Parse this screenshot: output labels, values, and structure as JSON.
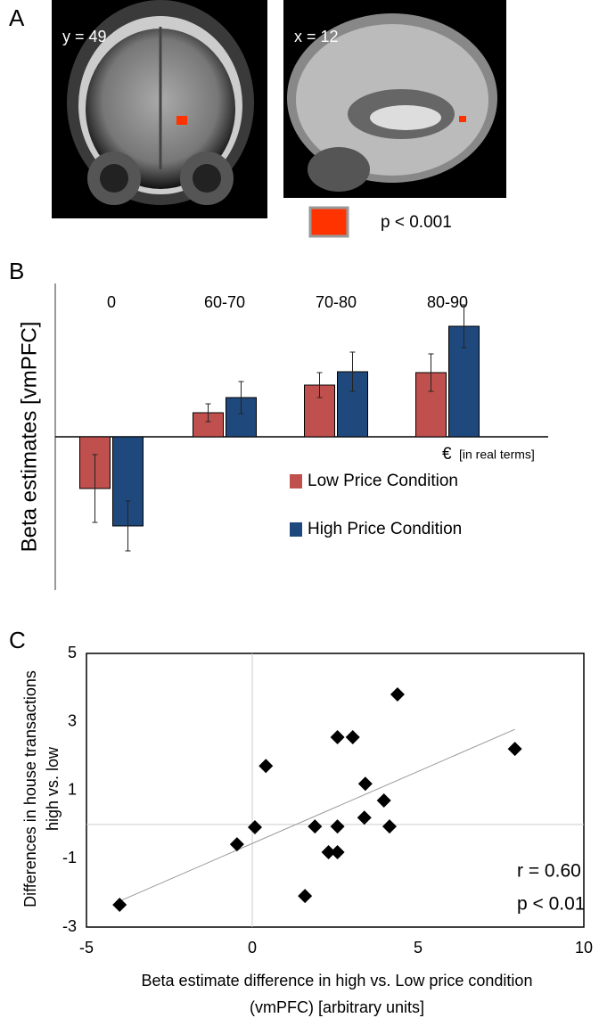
{
  "panel_a": {
    "label": "A",
    "image_1_label": "y = 49",
    "image_2_label": "x = 12",
    "legend_label": "p < 0.001",
    "legend_color": "#ff3300"
  },
  "chart_data": [
    {
      "type": "bar",
      "panel_label": "B",
      "ylabel": "Beta estimates [vmPFC]",
      "xlabel": "€",
      "xlabel_note": "[in real terms]",
      "categories": [
        "0",
        "60-70",
        "70-80",
        "80-90"
      ],
      "ylim": [
        -1.72,
        1.72
      ],
      "series": [
        {
          "name": "Low Price Condition",
          "color": "#c0504d",
          "values": [
            -0.58,
            0.27,
            0.58,
            0.72
          ],
          "errors": [
            0.38,
            0.1,
            0.14,
            0.21
          ]
        },
        {
          "name": "High Price Condition",
          "color": "#1f497d",
          "values": [
            -1.0,
            0.44,
            0.73,
            1.24
          ],
          "errors": [
            0.28,
            0.18,
            0.22,
            0.24
          ]
        }
      ]
    },
    {
      "type": "scatter",
      "panel_label": "C",
      "ylabel": [
        "Differences in house transactions",
        "high vs. low"
      ],
      "xlabel": [
        "Beta estimate difference in high vs. Low price condition",
        "(vmPFC) [arbitrary units]"
      ],
      "xlim": [
        -5,
        10
      ],
      "ylim": [
        -3,
        5
      ],
      "xticks": [
        -5,
        0,
        5,
        10
      ],
      "yticks": [
        5,
        3,
        1,
        -1,
        -3
      ],
      "zero_lines": true,
      "color": "#000000",
      "x": [
        -4.0,
        -0.46,
        0.08,
        0.41,
        1.59,
        1.89,
        2.3,
        2.57,
        2.57,
        2.57,
        3.03,
        4.38,
        3.41,
        3.38,
        3.97,
        4.14,
        7.92
      ],
      "y": [
        -2.35,
        -0.58,
        -0.08,
        1.71,
        -2.09,
        -0.06,
        -0.81,
        -0.81,
        -0.06,
        2.55,
        2.55,
        3.8,
        1.19,
        0.2,
        0.7,
        -0.06,
        2.21
      ],
      "trendline": {
        "x": [
          -3.95,
          7.92
        ],
        "y": [
          -2.22,
          2.78
        ]
      },
      "annotations": [
        "r = 0.60",
        "p < 0.01"
      ]
    }
  ]
}
